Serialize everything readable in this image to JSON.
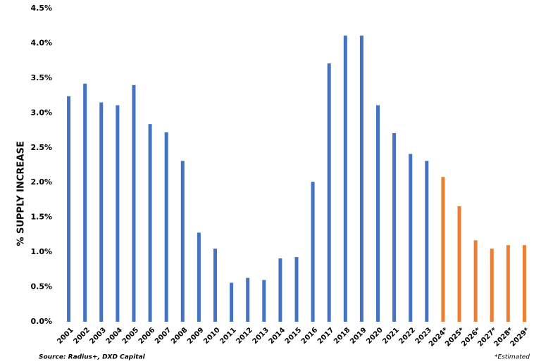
{
  "chart_data": {
    "type": "bar",
    "y_label": "% SUPPLY INCREASE",
    "categories": [
      "2001",
      "2002",
      "2003",
      "2004",
      "2005",
      "2006",
      "2007",
      "2008",
      "2009",
      "2010",
      "2011",
      "2012",
      "2013",
      "2014",
      "2015",
      "2016",
      "2017",
      "2018",
      "2019",
      "2020",
      "2021",
      "2022",
      "2023",
      "2024*",
      "2025*",
      "2026*",
      "2027*",
      "2028*",
      "2029*"
    ],
    "values": [
      3.24,
      3.42,
      3.15,
      3.11,
      3.4,
      2.84,
      2.72,
      2.31,
      1.28,
      1.05,
      0.56,
      0.63,
      0.6,
      0.91,
      0.93,
      2.01,
      3.71,
      4.11,
      4.11,
      3.11,
      2.71,
      2.41,
      2.31,
      2.08,
      1.66,
      1.17,
      1.05,
      1.1,
      1.1
    ],
    "colors": [
      "#4472c4",
      "#4472c4",
      "#4472c4",
      "#4472c4",
      "#4472c4",
      "#4472c4",
      "#4472c4",
      "#4472c4",
      "#4472c4",
      "#4472c4",
      "#4472c4",
      "#4472c4",
      "#4472c4",
      "#4472c4",
      "#4472c4",
      "#4472c4",
      "#4472c4",
      "#4472c4",
      "#4472c4",
      "#4472c4",
      "#4472c4",
      "#4472c4",
      "#4472c4",
      "#ed7d31",
      "#ed7d31",
      "#ed7d31",
      "#ed7d31",
      "#ed7d31",
      "#ed7d31"
    ],
    "ylim": [
      0,
      4.5
    ],
    "yticks": [
      {
        "value": 0,
        "label": "0.0%"
      },
      {
        "value": 0.5,
        "label": "0.5%"
      },
      {
        "value": 1,
        "label": "1.0%"
      },
      {
        "value": 1.5,
        "label": "1.5%"
      },
      {
        "value": 2,
        "label": "2.0%"
      },
      {
        "value": 2.5,
        "label": "2.5%"
      },
      {
        "value": 3,
        "label": "3.0%"
      },
      {
        "value": 3.5,
        "label": "3.5%"
      },
      {
        "value": 4,
        "label": "4.0%"
      },
      {
        "value": 4.5,
        "label": "4.5%"
      }
    ],
    "grid": false,
    "source": "Source: Radius+, DXD Capital",
    "footnote": "*Estimated"
  }
}
